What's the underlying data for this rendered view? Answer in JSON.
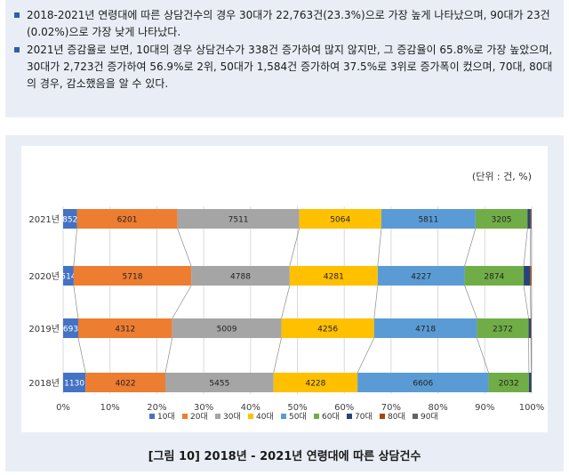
{
  "summary": {
    "bullet1": "2018-2021년 연령대에 따른 상담건수의 경우 30대가 22,763건(23.3%)으로 가장 높게 나타났으며, 90대가 23건(0.02%)으로 가장 낮게 나타났다.",
    "bullet2": "2021년 증감율로 보면, 10대의 경우 상담건수가 338건 증가하여 많지 않지만, 그 증감율이 65.8%로 가장 높았으며, 30대가 2,723건 증가하여 56.9%로 2위, 50대가 1,584건 증가하여 37.5%로 3위로 증가폭이 컸으며, 70대, 80대의 경우, 감소했음을 알 수 있다."
  },
  "caption": "[그림 10] 2018년 - 2021년 연령대에 따른 상담건수",
  "chart_data": {
    "type": "bar",
    "orientation": "horizontal",
    "stacked": "percent",
    "unit_note": "(단위 : 건, %)",
    "categories": [
      "2021년",
      "2020년",
      "2019년",
      "2018년"
    ],
    "x_ticks": [
      "0%",
      "10%",
      "20%",
      "30%",
      "40%",
      "50%",
      "60%",
      "70%",
      "80%",
      "90%",
      "100%"
    ],
    "xlim": [
      0,
      100
    ],
    "legend_position": "bottom",
    "series": [
      {
        "name": "10대",
        "color": "#4472c4",
        "values": [
          852,
          514,
          693,
          1130
        ]
      },
      {
        "name": "20대",
        "color": "#ed7d31",
        "values": [
          6201,
          5718,
          4312,
          4022
        ]
      },
      {
        "name": "30대",
        "color": "#a5a5a5",
        "values": [
          7511,
          4788,
          5009,
          5455
        ]
      },
      {
        "name": "40대",
        "color": "#ffc000",
        "values": [
          5064,
          4281,
          4256,
          4228
        ]
      },
      {
        "name": "50대",
        "color": "#5b9bd5",
        "values": [
          5811,
          4227,
          4718,
          6606
        ]
      },
      {
        "name": "60대",
        "color": "#70ad47",
        "values": [
          3205,
          2874,
          2372,
          2032
        ]
      },
      {
        "name": "70대",
        "color": "#264478",
        "values": [
          191,
          310,
          105,
          118
        ]
      },
      {
        "name": "80대",
        "color": "#9e480e",
        "values": [
          60,
          70,
          30,
          15
        ]
      },
      {
        "name": "90대",
        "color": "#636363",
        "values": [
          6,
          6,
          5,
          6
        ]
      }
    ],
    "labeled_series": [
      "10대",
      "20대",
      "30대",
      "40대",
      "50대",
      "60대"
    ]
  }
}
